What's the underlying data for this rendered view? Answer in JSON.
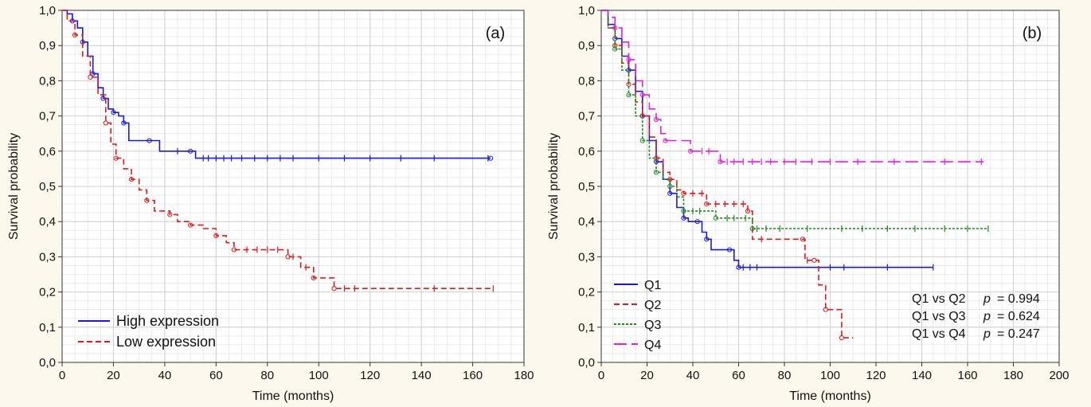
{
  "chart_data": [
    {
      "type": "line",
      "panel_label": "(a)",
      "xlabel": "Time (months)",
      "ylabel": "Survival probability",
      "xlim": [
        0,
        180
      ],
      "ylim": [
        0,
        1
      ],
      "x_ticks": [
        0,
        20,
        40,
        60,
        80,
        100,
        120,
        140,
        160,
        180
      ],
      "y_ticks": [
        "0,0",
        "0,1",
        "0,2",
        "0,3",
        "0,4",
        "0,5",
        "0,6",
        "0,7",
        "0,8",
        "0,9",
        "1,0"
      ],
      "grid": true,
      "legend": "bottom-left",
      "series": [
        {
          "name": "High expression",
          "color": "#1a1adc",
          "style": "solid",
          "points": [
            [
              0,
              1.0
            ],
            [
              2,
              0.99
            ],
            [
              4,
              0.97
            ],
            [
              6,
              0.95
            ],
            [
              8,
              0.91
            ],
            [
              10,
              0.87
            ],
            [
              12,
              0.82
            ],
            [
              14,
              0.78
            ],
            [
              16,
              0.75
            ],
            [
              18,
              0.72
            ],
            [
              20,
              0.71
            ],
            [
              22,
              0.7
            ],
            [
              24,
              0.68
            ],
            [
              26,
              0.63
            ],
            [
              34,
              0.63
            ],
            [
              38,
              0.6
            ],
            [
              50,
              0.6
            ],
            [
              52,
              0.58
            ],
            [
              167,
              0.58
            ]
          ],
          "censors": [
            45,
            55,
            57,
            60,
            63,
            66,
            70,
            75,
            80,
            85,
            90,
            100,
            110,
            120,
            132,
            145,
            166
          ]
        },
        {
          "name": "Low expression",
          "color": "#e01a1a",
          "style": "dashed",
          "points": [
            [
              0,
              1.0
            ],
            [
              2,
              0.97
            ],
            [
              5,
              0.93
            ],
            [
              8,
              0.87
            ],
            [
              11,
              0.81
            ],
            [
              14,
              0.76
            ],
            [
              17,
              0.68
            ],
            [
              19,
              0.62
            ],
            [
              21,
              0.58
            ],
            [
              24,
              0.55
            ],
            [
              27,
              0.52
            ],
            [
              30,
              0.49
            ],
            [
              33,
              0.46
            ],
            [
              36,
              0.43
            ],
            [
              42,
              0.42
            ],
            [
              45,
              0.4
            ],
            [
              50,
              0.39
            ],
            [
              55,
              0.38
            ],
            [
              60,
              0.36
            ],
            [
              64,
              0.34
            ],
            [
              67,
              0.32
            ],
            [
              87,
              0.32
            ],
            [
              88,
              0.3
            ],
            [
              93,
              0.27
            ],
            [
              98,
              0.24
            ],
            [
              105,
              0.24
            ],
            [
              106,
              0.21
            ],
            [
              168,
              0.21
            ]
          ],
          "censors": [
            72,
            76,
            80,
            84,
            90,
            95,
            110,
            114,
            145,
            168
          ]
        }
      ]
    },
    {
      "type": "line",
      "panel_label": "(b)",
      "xlabel": "Time (months)",
      "ylabel": "Survival probability",
      "xlim": [
        0,
        200
      ],
      "ylim": [
        0,
        1
      ],
      "x_ticks": [
        0,
        20,
        40,
        60,
        80,
        100,
        120,
        140,
        160,
        180,
        200
      ],
      "y_ticks": [
        "0,0",
        "0,1",
        "0,2",
        "0,3",
        "0,4",
        "0,5",
        "0,6",
        "0,7",
        "0,8",
        "0,9",
        "1,0"
      ],
      "grid": true,
      "legend": "bottom-left",
      "annotations": [
        {
          "label": "Q1 vs Q2",
          "p_label": "p",
          "p_value": "= 0.994"
        },
        {
          "label": "Q1 vs Q3",
          "p_label": "p",
          "p_value": "= 0.624"
        },
        {
          "label": "Q1 vs Q4",
          "p_label": "p",
          "p_value": "= 0.247"
        }
      ],
      "series": [
        {
          "name": "Q1",
          "color": "#1a1adc",
          "style": "solid",
          "points": [
            [
              0,
              1.0
            ],
            [
              3,
              0.96
            ],
            [
              6,
              0.92
            ],
            [
              9,
              0.87
            ],
            [
              12,
              0.83
            ],
            [
              15,
              0.77
            ],
            [
              18,
              0.7
            ],
            [
              21,
              0.63
            ],
            [
              24,
              0.57
            ],
            [
              27,
              0.52
            ],
            [
              30,
              0.48
            ],
            [
              33,
              0.44
            ],
            [
              36,
              0.41
            ],
            [
              38,
              0.4
            ],
            [
              42,
              0.4
            ],
            [
              44,
              0.37
            ],
            [
              46,
              0.35
            ],
            [
              48,
              0.32
            ],
            [
              56,
              0.32
            ],
            [
              58,
              0.29
            ],
            [
              60,
              0.27
            ],
            [
              145,
              0.27
            ]
          ],
          "censors": [
            62,
            65,
            68,
            100,
            106,
            125,
            145
          ]
        },
        {
          "name": "Q2",
          "color": "#e01a1a",
          "style": "dashed",
          "points": [
            [
              0,
              1.0
            ],
            [
              3,
              0.95
            ],
            [
              6,
              0.9
            ],
            [
              9,
              0.85
            ],
            [
              12,
              0.79
            ],
            [
              15,
              0.74
            ],
            [
              18,
              0.7
            ],
            [
              21,
              0.64
            ],
            [
              24,
              0.58
            ],
            [
              27,
              0.54
            ],
            [
              30,
              0.52
            ],
            [
              33,
              0.49
            ],
            [
              36,
              0.48
            ],
            [
              45,
              0.48
            ],
            [
              46,
              0.45
            ],
            [
              60,
              0.45
            ],
            [
              64,
              0.43
            ],
            [
              66,
              0.35
            ],
            [
              88,
              0.35
            ],
            [
              89,
              0.29
            ],
            [
              93,
              0.29
            ],
            [
              95,
              0.22
            ],
            [
              98,
              0.15
            ],
            [
              104,
              0.15
            ],
            [
              105,
              0.07
            ],
            [
              110,
              0.07
            ]
          ],
          "censors": [
            40,
            44,
            50,
            54,
            58,
            62,
            70,
            90
          ]
        },
        {
          "name": "Q3",
          "color": "#1a8c1a",
          "style": "dotted",
          "points": [
            [
              0,
              1.0
            ],
            [
              3,
              0.95
            ],
            [
              6,
              0.89
            ],
            [
              9,
              0.83
            ],
            [
              12,
              0.76
            ],
            [
              15,
              0.7
            ],
            [
              18,
              0.63
            ],
            [
              21,
              0.58
            ],
            [
              24,
              0.54
            ],
            [
              27,
              0.52
            ],
            [
              30,
              0.5
            ],
            [
              33,
              0.47
            ],
            [
              36,
              0.43
            ],
            [
              46,
              0.43
            ],
            [
              50,
              0.41
            ],
            [
              60,
              0.41
            ],
            [
              66,
              0.38
            ],
            [
              169,
              0.38
            ]
          ],
          "censors": [
            40,
            43,
            55,
            58,
            63,
            68,
            72,
            78,
            90,
            105,
            114,
            125,
            137,
            150,
            160,
            169
          ]
        },
        {
          "name": "Q4",
          "color": "#e020e0",
          "style": "longdash",
          "points": [
            [
              0,
              1.0
            ],
            [
              3,
              0.98
            ],
            [
              6,
              0.95
            ],
            [
              9,
              0.91
            ],
            [
              12,
              0.86
            ],
            [
              15,
              0.8
            ],
            [
              18,
              0.76
            ],
            [
              21,
              0.72
            ],
            [
              24,
              0.69
            ],
            [
              26,
              0.65
            ],
            [
              28,
              0.63
            ],
            [
              37,
              0.63
            ],
            [
              39,
              0.6
            ],
            [
              50,
              0.6
            ],
            [
              52,
              0.57
            ],
            [
              167,
              0.57
            ]
          ],
          "censors": [
            44,
            47,
            55,
            58,
            62,
            66,
            70,
            74,
            80,
            85,
            92,
            100,
            112,
            128,
            150,
            166
          ]
        }
      ]
    }
  ]
}
